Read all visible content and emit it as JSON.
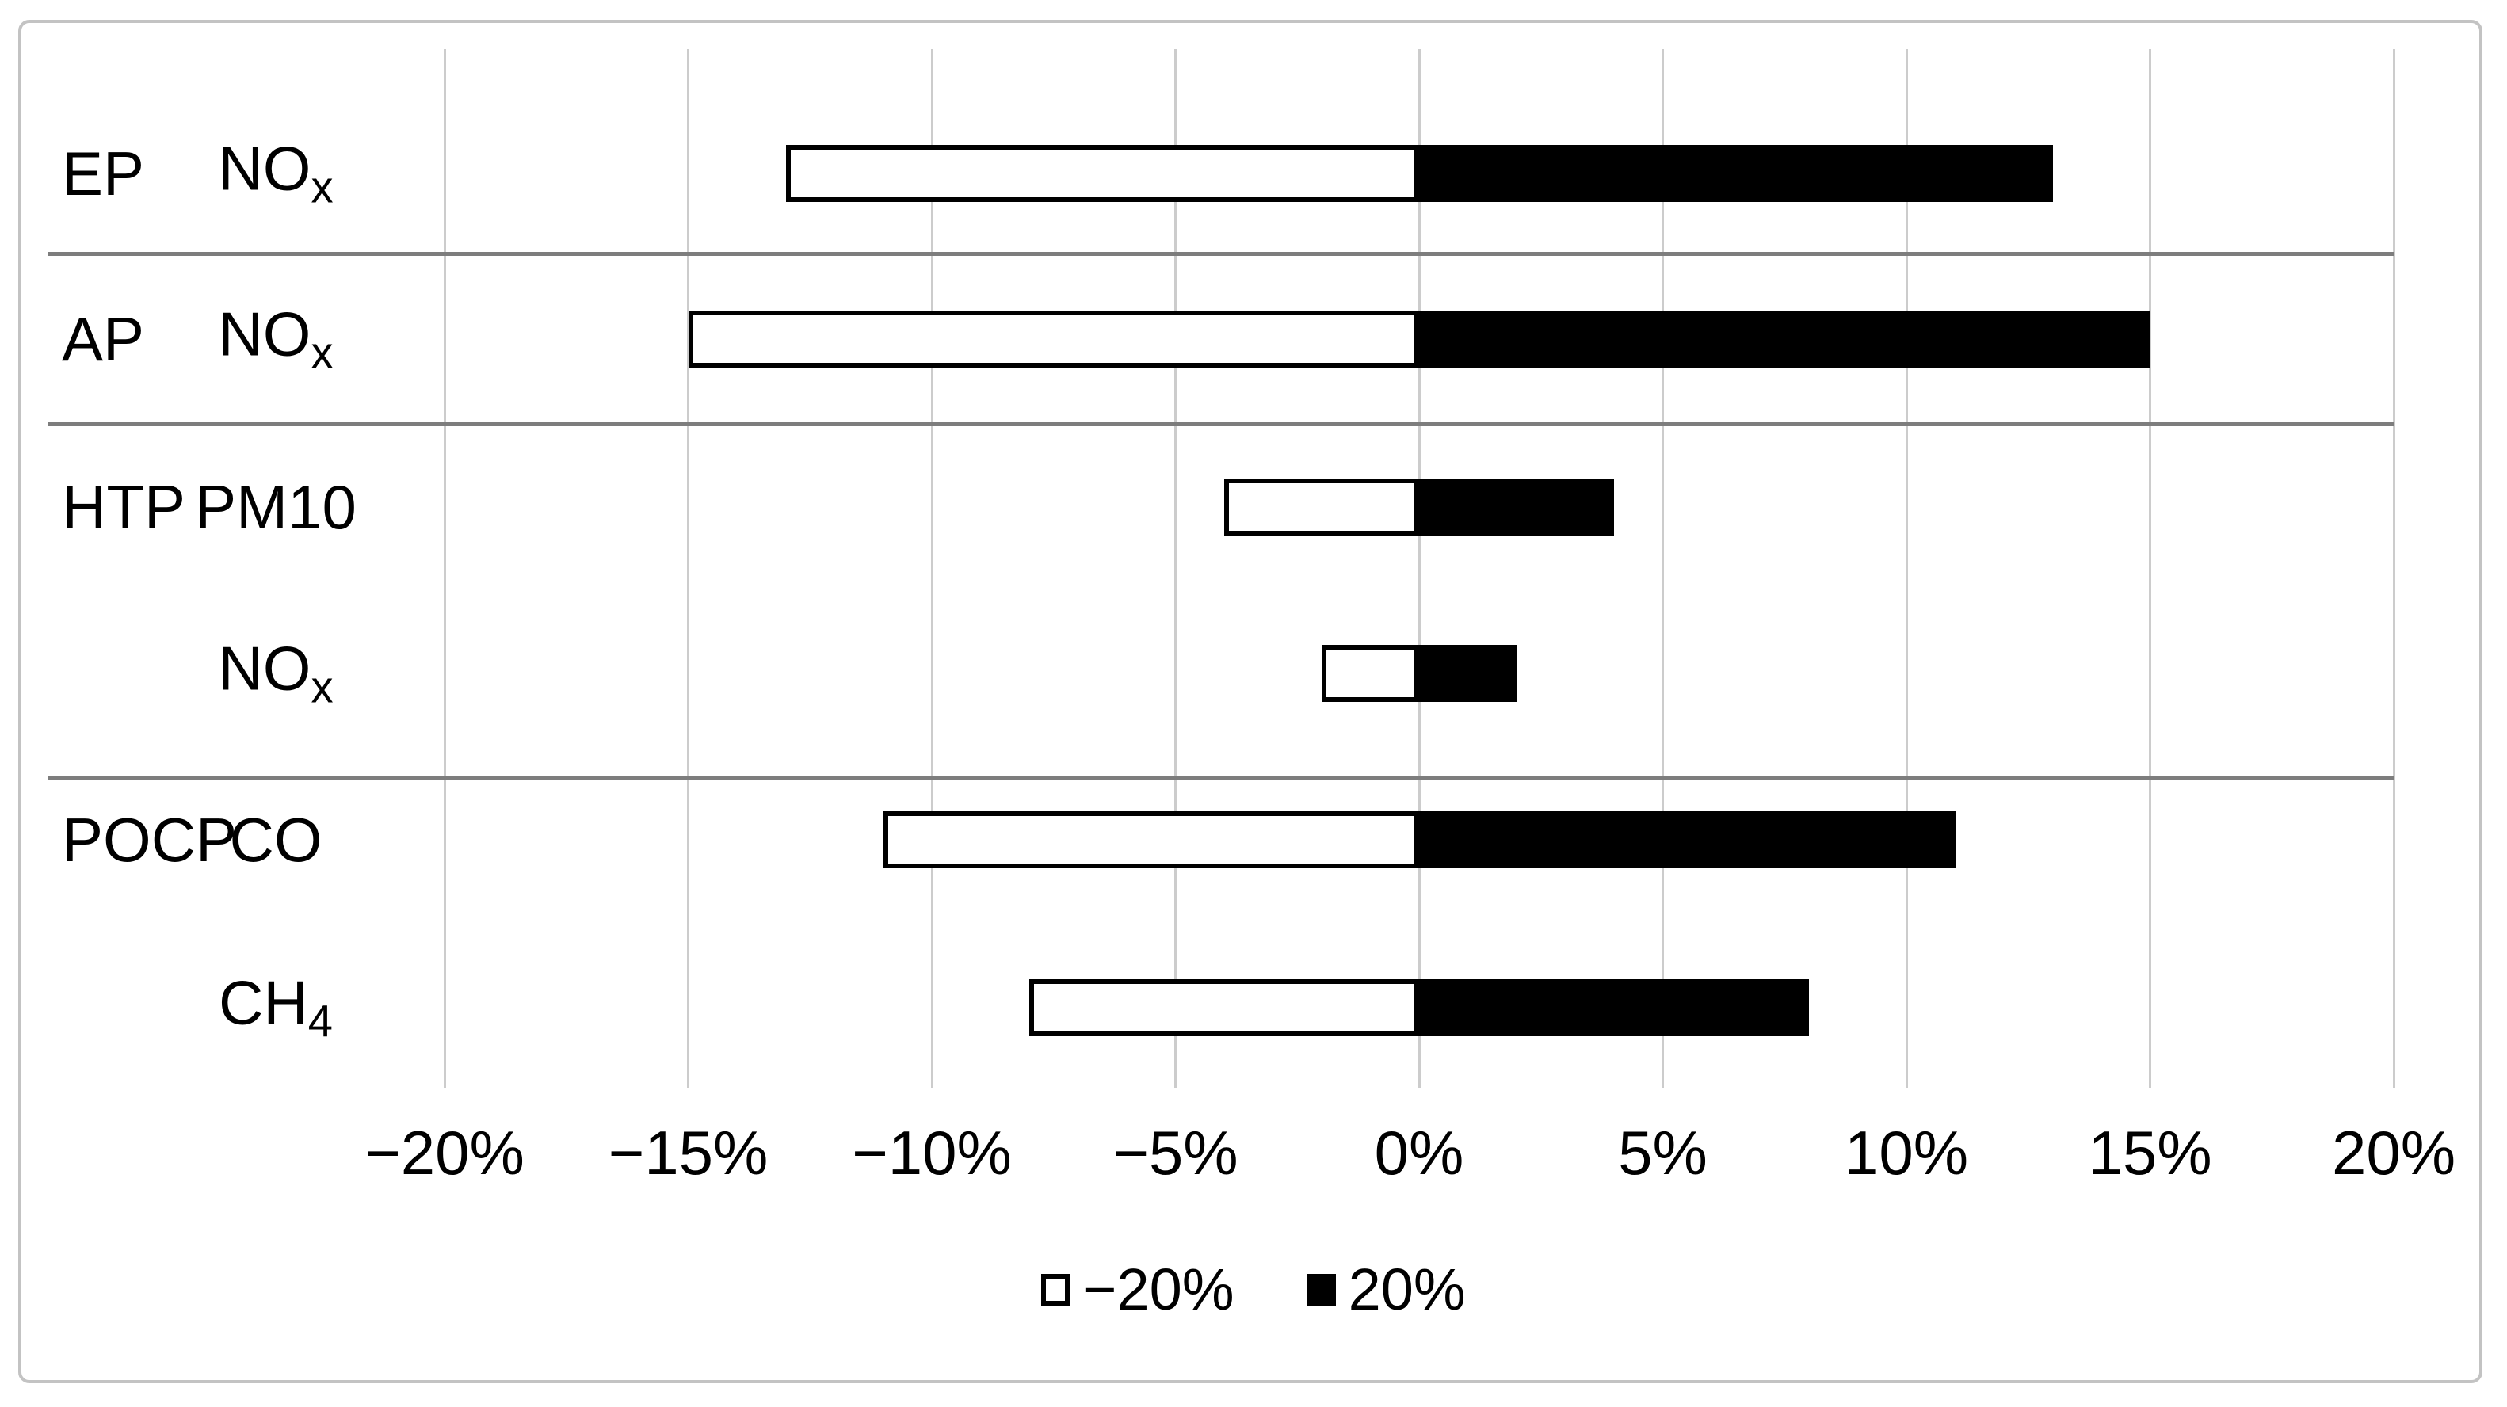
{
  "chart_data": {
    "type": "bar",
    "orientation": "horizontal",
    "title": "",
    "xlabel": "",
    "ylabel": "",
    "unit": "%",
    "axis": {
      "min": -20,
      "max": 20,
      "step": 5,
      "tick_values": [
        -20,
        -15,
        -10,
        -5,
        0,
        5,
        10,
        15,
        20
      ],
      "tick_labels": [
        "−20%",
        "−15%",
        "−10%",
        "−5%",
        "0%",
        "5%",
        "10%",
        "15%",
        "20%"
      ]
    },
    "grid": "vertical-on",
    "legend_position": "bottom-center",
    "categories": [
      "EP NOx",
      "AP NOx",
      "HTP PM10",
      "HTP NOx",
      "POCP CO",
      "POCP CH4"
    ],
    "series": [
      {
        "name": "−20%",
        "values": [
          -13,
          -15,
          -4,
          -2,
          -11,
          -8
        ],
        "fill": "#ffffff",
        "border": "#000000"
      },
      {
        "name": "20%",
        "values": [
          13,
          15,
          4,
          2,
          11,
          8
        ],
        "fill": "#000000",
        "border": "#000000"
      }
    ],
    "rows": [
      {
        "group": "EP",
        "base": "NO",
        "sub": "x",
        "neg": -13,
        "pos": 13
      },
      {
        "group": "AP",
        "base": "NO",
        "sub": "x",
        "neg": -15,
        "pos": 15
      },
      {
        "group": "HTP",
        "base": "PM10",
        "sub": "",
        "neg": -4,
        "pos": 4
      },
      {
        "group": "",
        "base": "NO",
        "sub": "x",
        "neg": -2,
        "pos": 2
      },
      {
        "group": "POCP",
        "base": "CO",
        "sub": "",
        "neg": -11,
        "pos": 11
      },
      {
        "group": "",
        "base": "CH",
        "sub": "4",
        "neg": -8,
        "pos": 8
      }
    ],
    "group_separators_after_rows": [
      0,
      1,
      3
    ],
    "legend": [
      {
        "label": "−20%",
        "swatch": "white-outlined-square"
      },
      {
        "label": "20%",
        "swatch": "black-filled-square"
      }
    ],
    "colors": {
      "bar_positive": "#000000",
      "bar_negative_fill": "#ffffff",
      "bar_border": "#000000",
      "gridline": "#cccccc",
      "group_separator": "#7d7d7d",
      "frame_border": "#c3c3c3",
      "text": "#000000"
    }
  }
}
